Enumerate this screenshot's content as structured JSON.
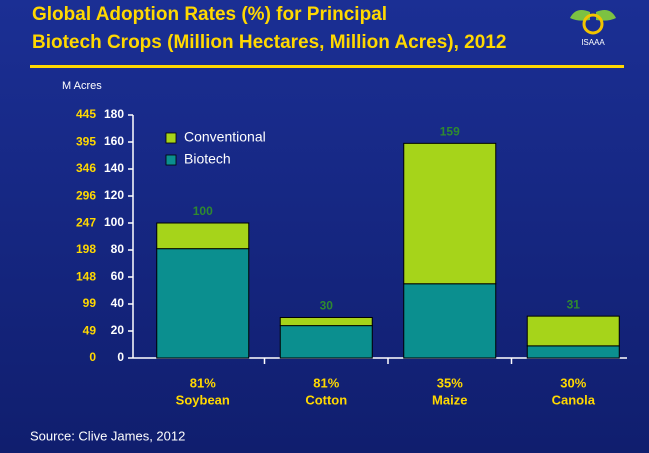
{
  "chart_data": {
    "type": "stacked_bar",
    "title": [
      "Global Adoption Rates (%) for Principal",
      "Biotech Crops (Million Hectares, Million Acres), 2012"
    ],
    "logo_text": "ISAAA",
    "categories": [
      "Soybean",
      "Cotton",
      "Maize",
      "Canola"
    ],
    "adoption_labels": [
      "81%",
      "81%",
      "35%",
      "30%"
    ],
    "series": [
      {
        "name": "Biotech",
        "color": "#0b8f8f",
        "values": [
          81,
          24,
          55,
          9
        ]
      },
      {
        "name": "Conventional",
        "color": "#a6d41a",
        "values": [
          19,
          6,
          104,
          22
        ]
      }
    ],
    "totals": [
      100,
      30,
      159,
      31
    ],
    "ylim": [
      0,
      180
    ],
    "yticks": [
      0,
      20,
      40,
      60,
      80,
      100,
      120,
      140,
      160,
      180
    ],
    "y2_label": "M Acres",
    "y2lim": [
      0,
      445
    ],
    "y2ticks": [
      0,
      49,
      99,
      148,
      198,
      247,
      296,
      346,
      395,
      445
    ],
    "legend": "top-left",
    "source": "Source: Clive James, 2012"
  }
}
